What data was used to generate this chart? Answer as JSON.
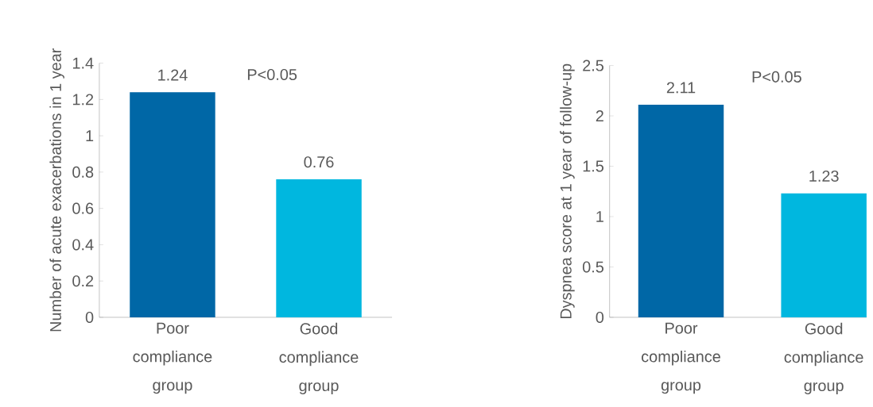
{
  "chart_data": [
    {
      "type": "bar",
      "ylabel": "Number of acute exacerbations in 1 year",
      "categories": [
        "Poor compliance group",
        "Good compliance group"
      ],
      "values": [
        1.24,
        0.76
      ],
      "colors": [
        "#0067a6",
        "#00b7df"
      ],
      "ylim": [
        0,
        1.4
      ],
      "yticks": [
        0,
        0.2,
        0.4,
        0.6,
        0.8,
        1,
        1.2,
        1.4
      ],
      "data_labels": true,
      "annotations": [
        "P<0.05"
      ]
    },
    {
      "type": "bar",
      "ylabel": "Dyspnea score at 1 year of follow-up",
      "categories": [
        "Poor compliance group",
        "Good compliance group"
      ],
      "values": [
        2.11,
        1.23
      ],
      "colors": [
        "#0067a6",
        "#00b7df"
      ],
      "ylim": [
        0,
        2.5
      ],
      "yticks": [
        0,
        0.5,
        1,
        1.5,
        2,
        2.5
      ],
      "data_labels": true,
      "annotations": [
        "P<0.05"
      ]
    }
  ]
}
